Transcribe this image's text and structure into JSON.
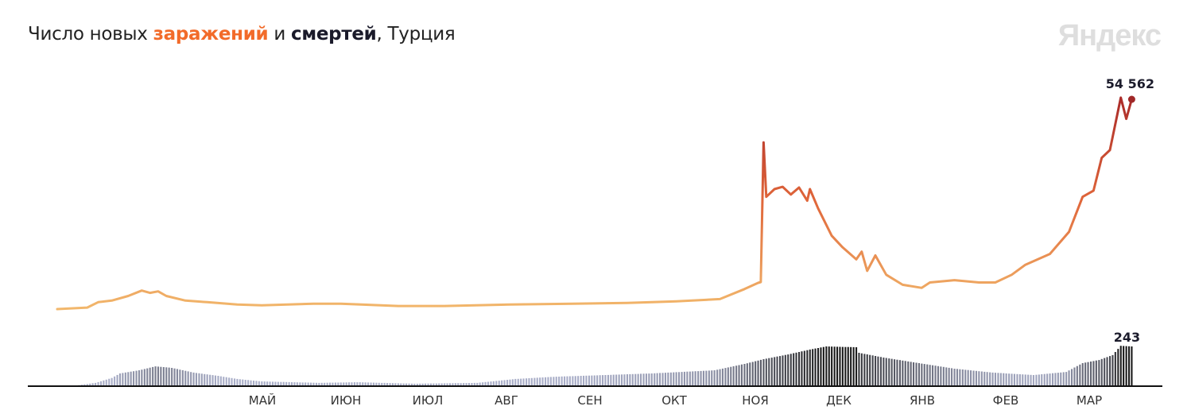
{
  "title": {
    "part1": "Число новых ",
    "cases_word": "заражений",
    "part2": " и ",
    "deaths_word": "смертей",
    "part3": ", Турция"
  },
  "logo": "Яндекс",
  "colors": {
    "cases_low": "#f2b86c",
    "cases_mid": "#e0663a",
    "cases_high": "#a82828",
    "deaths_light": "#a9aec8",
    "deaths_dark": "#1a1a1a",
    "title_accent": "#f26b2a"
  },
  "chart_data": {
    "type": "line",
    "x_axis": {
      "tick_labels": [
        "МАЙ",
        "ИЮН",
        "ИЮЛ",
        "АВГ",
        "СЕН",
        "ОКТ",
        "НОЯ",
        "ДЕК",
        "ЯНВ",
        "ФЕВ",
        "МАР"
      ]
    },
    "grid": false,
    "series": [
      {
        "name": "заражений",
        "type": "line",
        "last_value_label": "54 562",
        "points": [
          [
            "2020-03-11",
            200
          ],
          [
            "2020-03-22",
            600
          ],
          [
            "2020-03-26",
            2000
          ],
          [
            "2020-03-31",
            2400
          ],
          [
            "2020-04-06",
            3600
          ],
          [
            "2020-04-11",
            5000
          ],
          [
            "2020-04-14",
            4400
          ],
          [
            "2020-04-17",
            4800
          ],
          [
            "2020-04-20",
            3600
          ],
          [
            "2020-04-27",
            2400
          ],
          [
            "2020-05-05",
            2000
          ],
          [
            "2020-05-16",
            1400
          ],
          [
            "2020-05-25",
            1200
          ],
          [
            "2020-06-13",
            1600
          ],
          [
            "2020-06-23",
            1600
          ],
          [
            "2020-07-14",
            1000
          ],
          [
            "2020-07-31",
            1000
          ],
          [
            "2020-08-24",
            1400
          ],
          [
            "2020-09-16",
            1600
          ],
          [
            "2020-10-06",
            1800
          ],
          [
            "2020-10-24",
            2200
          ],
          [
            "2020-11-09",
            2800
          ],
          [
            "2020-11-18",
            5400
          ],
          [
            "2020-11-23",
            7000
          ],
          [
            "2020-11-24",
            7200
          ],
          [
            "2020-11-25",
            43400
          ],
          [
            "2020-11-26",
            29300
          ],
          [
            "2020-11-29",
            31300
          ],
          [
            "2020-12-02",
            31900
          ],
          [
            "2020-12-05",
            29900
          ],
          [
            "2020-12-08",
            31700
          ],
          [
            "2020-12-11",
            28300
          ],
          [
            "2020-12-12",
            31300
          ],
          [
            "2020-12-15",
            26300
          ],
          [
            "2020-12-20",
            19200
          ],
          [
            "2020-12-24",
            16200
          ],
          [
            "2020-12-29",
            13100
          ],
          [
            "2020-12-31",
            15100
          ],
          [
            "2021-01-02",
            10100
          ],
          [
            "2021-01-05",
            14100
          ],
          [
            "2021-01-09",
            9100
          ],
          [
            "2021-01-15",
            6500
          ],
          [
            "2021-01-22",
            5700
          ],
          [
            "2021-01-25",
            7100
          ],
          [
            "2021-02-03",
            7700
          ],
          [
            "2021-02-12",
            7100
          ],
          [
            "2021-02-18",
            7100
          ],
          [
            "2021-02-24",
            9100
          ],
          [
            "2021-03-01",
            11700
          ],
          [
            "2021-03-10",
            14500
          ],
          [
            "2021-03-17",
            20200
          ],
          [
            "2021-03-22",
            29300
          ],
          [
            "2021-03-26",
            30900
          ],
          [
            "2021-03-29",
            39400
          ],
          [
            "2021-04-01",
            41400
          ],
          [
            "2021-04-05",
            55000
          ],
          [
            "2021-04-07",
            49500
          ],
          [
            "2021-04-09",
            54562
          ]
        ]
      },
      {
        "name": "смертей",
        "type": "bar",
        "last_value_label": "243",
        "points": [
          [
            "2020-03-17",
            2
          ],
          [
            "2020-03-25",
            20
          ],
          [
            "2020-03-31",
            50
          ],
          [
            "2020-04-03",
            78
          ],
          [
            "2020-04-10",
            97
          ],
          [
            "2020-04-16",
            121
          ],
          [
            "2020-04-22",
            112
          ],
          [
            "2020-04-30",
            83
          ],
          [
            "2020-05-09",
            63
          ],
          [
            "2020-05-16",
            44
          ],
          [
            "2020-05-25",
            29
          ],
          [
            "2020-06-15",
            20
          ],
          [
            "2020-06-29",
            24
          ],
          [
            "2020-07-20",
            15
          ],
          [
            "2020-08-12",
            20
          ],
          [
            "2020-08-26",
            44
          ],
          [
            "2020-09-10",
            58
          ],
          [
            "2020-09-28",
            68
          ],
          [
            "2020-10-15",
            78
          ],
          [
            "2020-11-07",
            97
          ],
          [
            "2020-11-18",
            136
          ],
          [
            "2020-11-25",
            165
          ],
          [
            "2020-12-04",
            194
          ],
          [
            "2020-12-12",
            224
          ],
          [
            "2020-12-18",
            243
          ],
          [
            "2020-12-29",
            238
          ],
          [
            "2020-12-30",
            204
          ],
          [
            "2021-01-08",
            175
          ],
          [
            "2021-01-19",
            146
          ],
          [
            "2021-02-03",
            107
          ],
          [
            "2021-02-17",
            83
          ],
          [
            "2021-03-04",
            68
          ],
          [
            "2021-03-16",
            87
          ],
          [
            "2021-03-22",
            141
          ],
          [
            "2021-03-28",
            160
          ],
          [
            "2021-04-02",
            190
          ],
          [
            "2021-04-05",
            247
          ],
          [
            "2021-04-09",
            243
          ]
        ]
      }
    ]
  }
}
